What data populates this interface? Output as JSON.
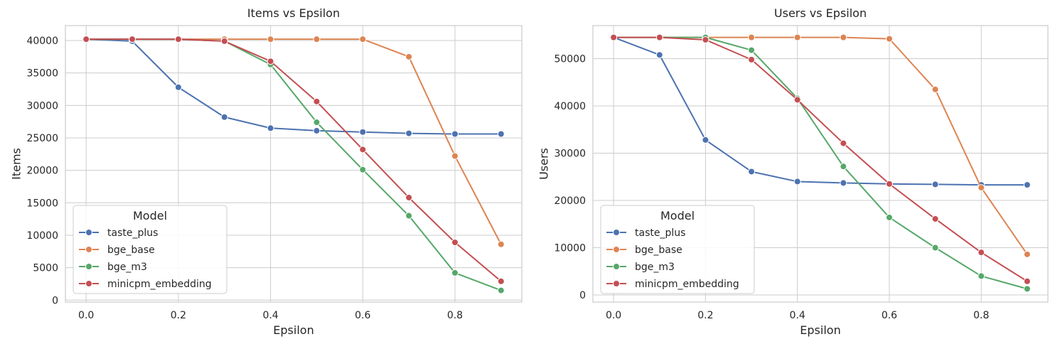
{
  "chart_data": [
    {
      "type": "line",
      "title": "Items vs Epsilon",
      "xlabel": "Epsilon",
      "ylabel": "Items",
      "xlim": [
        -0.045,
        0.945
      ],
      "ylim": [
        -300,
        42300
      ],
      "xticks": [
        0.0,
        0.2,
        0.4,
        0.6,
        0.8
      ],
      "xtick_labels": [
        "0.0",
        "0.2",
        "0.4",
        "0.6",
        "0.8"
      ],
      "yticks": [
        0,
        5000,
        10000,
        15000,
        20000,
        25000,
        30000,
        35000,
        40000
      ],
      "ytick_labels": [
        "0",
        "5000",
        "10000",
        "15000",
        "20000",
        "25000",
        "30000",
        "35000",
        "40000"
      ],
      "grid": true,
      "legend": {
        "title": "Model",
        "placement": "lower-left"
      },
      "x": [
        0.0,
        0.1,
        0.2,
        0.3,
        0.4,
        0.5,
        0.6,
        0.7,
        0.8,
        0.9
      ],
      "series": [
        {
          "name": "taste_plus",
          "color": "#4c72b0",
          "values": [
            40200,
            39900,
            32800,
            28200,
            26500,
            26100,
            25900,
            25700,
            25600,
            25600
          ]
        },
        {
          "name": "bge_base",
          "color": "#dd8452",
          "values": [
            40200,
            40200,
            40200,
            40200,
            40200,
            40200,
            40200,
            37500,
            22200,
            8600
          ]
        },
        {
          "name": "bge_m3",
          "color": "#55a868",
          "values": [
            40200,
            40200,
            40200,
            39900,
            36300,
            27400,
            20100,
            13000,
            4200,
            1500
          ]
        },
        {
          "name": "minicpm_embedding",
          "color": "#c44e52",
          "values": [
            40200,
            40200,
            40200,
            39900,
            36800,
            30600,
            23200,
            15800,
            8900,
            2900
          ]
        }
      ]
    },
    {
      "type": "line",
      "title": "Users vs Epsilon",
      "xlabel": "Epsilon",
      "ylabel": "Users",
      "xlim": [
        -0.045,
        0.945
      ],
      "ylim": [
        -1500,
        57000
      ],
      "xticks": [
        0.0,
        0.2,
        0.4,
        0.6,
        0.8
      ],
      "xtick_labels": [
        "0.0",
        "0.2",
        "0.4",
        "0.6",
        "0.8"
      ],
      "yticks": [
        0,
        10000,
        20000,
        30000,
        40000,
        50000
      ],
      "ytick_labels": [
        "0",
        "10000",
        "20000",
        "30000",
        "40000",
        "50000"
      ],
      "grid": true,
      "legend": {
        "title": "Model",
        "placement": "lower-left"
      },
      "x": [
        0.0,
        0.1,
        0.2,
        0.3,
        0.4,
        0.5,
        0.6,
        0.7,
        0.8,
        0.9
      ],
      "series": [
        {
          "name": "taste_plus",
          "color": "#4c72b0",
          "values": [
            54500,
            50800,
            32800,
            26100,
            24000,
            23700,
            23500,
            23400,
            23300,
            23300
          ]
        },
        {
          "name": "bge_base",
          "color": "#dd8452",
          "values": [
            54500,
            54500,
            54500,
            54500,
            54500,
            54500,
            54200,
            43500,
            22700,
            8600
          ]
        },
        {
          "name": "bge_m3",
          "color": "#55a868",
          "values": [
            54500,
            54500,
            54500,
            51800,
            41600,
            27200,
            16400,
            10000,
            4000,
            1300
          ]
        },
        {
          "name": "minicpm_embedding",
          "color": "#c44e52",
          "values": [
            54500,
            54500,
            54000,
            49800,
            41300,
            32100,
            23500,
            16100,
            9000,
            2900
          ]
        }
      ]
    }
  ]
}
